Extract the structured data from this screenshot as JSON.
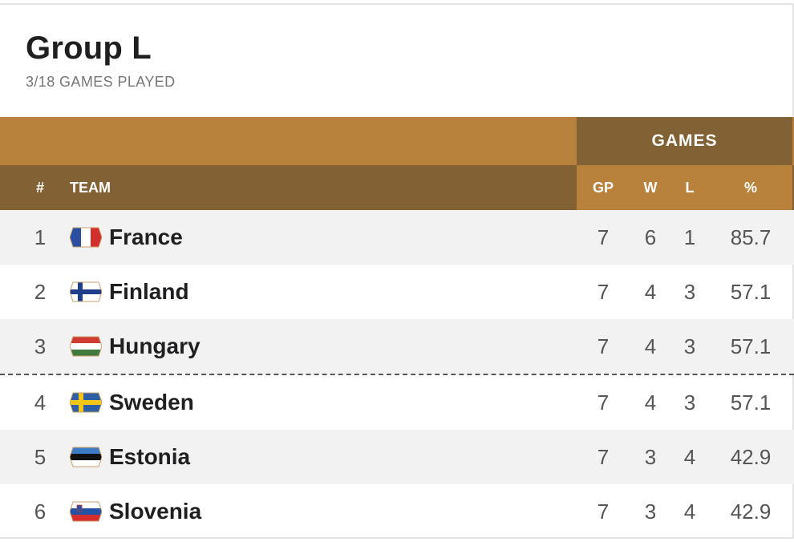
{
  "header": {
    "title": "Group L",
    "subtitle": "3/18 GAMES PLAYED"
  },
  "columns": {
    "rank": "#",
    "team": "TEAM",
    "group": "GAMES",
    "gp": "GP",
    "w": "W",
    "l": "L",
    "pct": "%"
  },
  "colors": {
    "header_gold": "#b8823d",
    "header_brown": "#826234",
    "row_alt": "#f2f2f2"
  },
  "rows": [
    {
      "rank": "1",
      "team": "France",
      "gp": "7",
      "w": "6",
      "l": "1",
      "pct": "85.7",
      "flag": "france-flag-icon"
    },
    {
      "rank": "2",
      "team": "Finland",
      "gp": "7",
      "w": "4",
      "l": "3",
      "pct": "57.1",
      "flag": "finland-flag-icon"
    },
    {
      "rank": "3",
      "team": "Hungary",
      "gp": "7",
      "w": "4",
      "l": "3",
      "pct": "57.1",
      "flag": "hungary-flag-icon"
    },
    {
      "rank": "4",
      "team": "Sweden",
      "gp": "7",
      "w": "4",
      "l": "3",
      "pct": "57.1",
      "flag": "sweden-flag-icon"
    },
    {
      "rank": "5",
      "team": "Estonia",
      "gp": "7",
      "w": "3",
      "l": "4",
      "pct": "42.9",
      "flag": "estonia-flag-icon"
    },
    {
      "rank": "6",
      "team": "Slovenia",
      "gp": "7",
      "w": "3",
      "l": "4",
      "pct": "42.9",
      "flag": "slovenia-flag-icon"
    }
  ]
}
